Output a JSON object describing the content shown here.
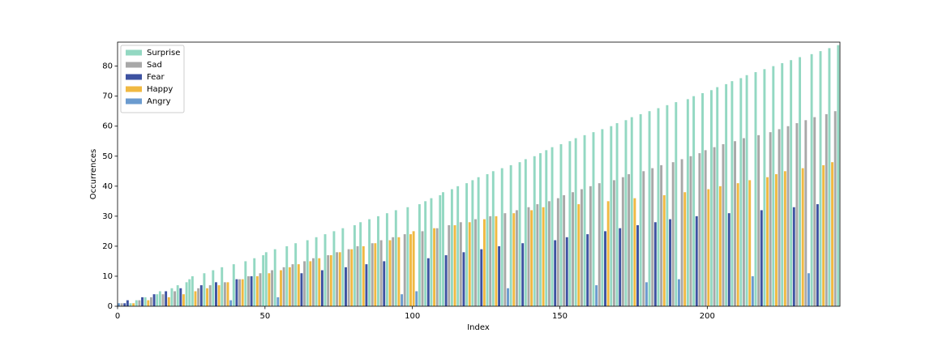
{
  "chart_data": {
    "type": "bar",
    "x_label": "Index",
    "y_label": "Occurrences",
    "xlim": [
      0,
      245
    ],
    "ylim": [
      0,
      88
    ],
    "xticks": [
      0,
      50,
      100,
      150,
      200
    ],
    "yticks": [
      0,
      10,
      20,
      30,
      40,
      50,
      60,
      70,
      80
    ],
    "grid": false,
    "legend": "upper left",
    "series": [
      {
        "name": "Surprise",
        "color": "#93d8c2",
        "x": [
          4,
          6,
          9,
          13,
          14,
          18,
          20,
          23,
          24,
          25,
          29,
          32,
          35,
          39,
          43,
          46,
          49,
          50,
          53,
          57,
          60,
          64,
          67,
          70,
          73,
          76,
          80,
          82,
          85,
          88,
          91,
          94,
          98,
          102,
          104,
          106,
          109,
          110,
          113,
          115,
          118,
          120,
          122,
          125,
          127,
          130,
          133,
          136,
          138,
          141,
          143,
          145,
          147,
          150,
          153,
          155,
          158,
          161,
          164,
          167,
          169,
          172,
          174,
          177,
          180,
          183,
          186,
          189,
          193,
          195,
          198,
          201,
          203,
          206,
          208,
          211,
          213,
          216,
          219,
          222,
          225,
          228,
          231,
          235,
          238,
          241,
          244
        ],
        "values": [
          1,
          2,
          3,
          4,
          5,
          6,
          7,
          8,
          9,
          10,
          11,
          12,
          13,
          14,
          15,
          16,
          17,
          18,
          19,
          20,
          21,
          22,
          23,
          24,
          25,
          26,
          27,
          28,
          29,
          30,
          31,
          32,
          33,
          34,
          35,
          36,
          37,
          38,
          39,
          40,
          41,
          42,
          43,
          44,
          45,
          46,
          47,
          48,
          49,
          50,
          51,
          52,
          53,
          54,
          55,
          56,
          57,
          58,
          59,
          60,
          61,
          62,
          63,
          64,
          65,
          66,
          67,
          68,
          69,
          70,
          71,
          72,
          73,
          74,
          75,
          76,
          77,
          78,
          79,
          80,
          81,
          82,
          83,
          84,
          85,
          86,
          87
        ]
      },
      {
        "name": "Sad",
        "color": "#a8a8a8",
        "x": [
          1,
          7,
          11,
          15,
          19,
          27,
          31,
          36,
          41,
          44,
          48,
          52,
          56,
          59,
          63,
          66,
          71,
          74,
          78,
          81,
          86,
          89,
          93,
          97,
          103,
          108,
          112,
          116,
          121,
          126,
          131,
          135,
          139,
          142,
          146,
          149,
          151,
          154,
          157,
          160,
          163,
          168,
          171,
          173,
          178,
          181,
          184,
          188,
          191,
          194,
          197,
          199,
          202,
          205,
          209,
          212,
          217,
          221,
          224,
          227,
          230,
          233,
          236,
          240,
          243
        ],
        "values": [
          1,
          2,
          3,
          4,
          5,
          6,
          7,
          8,
          9,
          10,
          11,
          12,
          13,
          14,
          15,
          16,
          17,
          18,
          19,
          20,
          21,
          22,
          23,
          24,
          25,
          26,
          27,
          28,
          29,
          30,
          31,
          32,
          33,
          34,
          35,
          36,
          37,
          38,
          39,
          40,
          41,
          42,
          43,
          44,
          45,
          46,
          47,
          48,
          49,
          50,
          51,
          52,
          53,
          54,
          55,
          56,
          57,
          58,
          59,
          60,
          61,
          62,
          63,
          64,
          65
        ]
      },
      {
        "name": "Fear",
        "color": "#3d52a1",
        "x": [
          2,
          3,
          8,
          12,
          16,
          21,
          28,
          33,
          40,
          45,
          62,
          69,
          77,
          84,
          90,
          105,
          111,
          117,
          123,
          129,
          137,
          148,
          152,
          159,
          165,
          170,
          176,
          182,
          187,
          196,
          207,
          218,
          229,
          237
        ],
        "values": [
          1,
          2,
          3,
          4,
          5,
          6,
          7,
          8,
          9,
          10,
          11,
          12,
          13,
          14,
          15,
          16,
          17,
          18,
          19,
          20,
          21,
          22,
          23,
          24,
          25,
          26,
          27,
          28,
          29,
          30,
          31,
          32,
          33,
          34
        ]
      },
      {
        "name": "Happy",
        "color": "#f0b942",
        "x": [
          5,
          10,
          17,
          22,
          26,
          30,
          34,
          37,
          42,
          47,
          51,
          55,
          58,
          61,
          65,
          68,
          72,
          75,
          79,
          83,
          87,
          92,
          95,
          99,
          100,
          107,
          114,
          119,
          124,
          128,
          134,
          140,
          144,
          156,
          166,
          175,
          185,
          192,
          200,
          204,
          210,
          214,
          220,
          223,
          226,
          232,
          239,
          242
        ],
        "values": [
          1,
          2,
          3,
          4,
          5,
          6,
          7,
          8,
          9,
          10,
          11,
          12,
          13,
          14,
          15,
          16,
          17,
          18,
          19,
          20,
          21,
          22,
          23,
          24,
          25,
          26,
          27,
          28,
          29,
          30,
          31,
          32,
          33,
          34,
          35,
          36,
          37,
          38,
          39,
          40,
          41,
          42,
          43,
          44,
          45,
          46,
          47,
          48
        ]
      },
      {
        "name": "Angry",
        "color": "#6b9bcf",
        "x": [
          0,
          38,
          54,
          96,
          101,
          132,
          162,
          179,
          190,
          215,
          234
        ],
        "values": [
          1,
          2,
          3,
          4,
          5,
          6,
          7,
          8,
          9,
          10,
          11
        ]
      }
    ]
  }
}
